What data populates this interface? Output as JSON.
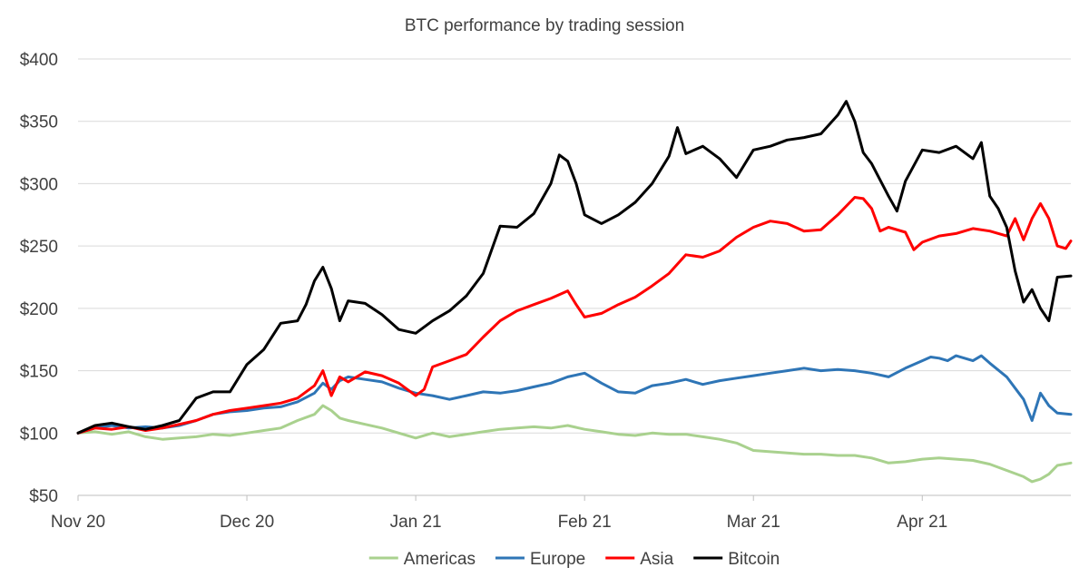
{
  "chart_data": {
    "type": "line",
    "title": "BTC performance by trading session",
    "xlabel": "",
    "ylabel": "",
    "ylim": [
      50,
      400
    ],
    "yticks": [
      50,
      100,
      150,
      200,
      250,
      300,
      350,
      400
    ],
    "ytick_labels": [
      "$50",
      "$100",
      "$150",
      "$200",
      "$250",
      "$300",
      "$350",
      "$400"
    ],
    "xlim": [
      0,
      5.88
    ],
    "xticks": [
      0,
      1,
      2,
      3,
      4,
      5
    ],
    "xtick_labels": [
      "Nov 20",
      "Dec 20",
      "Jan 21",
      "Feb 21",
      "Mar 21",
      "Apr 21"
    ],
    "grid": true,
    "legend_position": "bottom",
    "series": [
      {
        "name": "Americas",
        "color": "#a9d18e",
        "points": [
          [
            0,
            100
          ],
          [
            0.1,
            101
          ],
          [
            0.2,
            99
          ],
          [
            0.3,
            101
          ],
          [
            0.4,
            97
          ],
          [
            0.5,
            95
          ],
          [
            0.6,
            96
          ],
          [
            0.7,
            97
          ],
          [
            0.8,
            99
          ],
          [
            0.9,
            98
          ],
          [
            1.0,
            100
          ],
          [
            1.1,
            102
          ],
          [
            1.2,
            104
          ],
          [
            1.3,
            110
          ],
          [
            1.4,
            115
          ],
          [
            1.45,
            122
          ],
          [
            1.5,
            118
          ],
          [
            1.55,
            112
          ],
          [
            1.6,
            110
          ],
          [
            1.7,
            107
          ],
          [
            1.8,
            104
          ],
          [
            1.9,
            100
          ],
          [
            2.0,
            96
          ],
          [
            2.1,
            100
          ],
          [
            2.2,
            97
          ],
          [
            2.3,
            99
          ],
          [
            2.4,
            101
          ],
          [
            2.5,
            103
          ],
          [
            2.6,
            104
          ],
          [
            2.7,
            105
          ],
          [
            2.8,
            104
          ],
          [
            2.9,
            106
          ],
          [
            3.0,
            103
          ],
          [
            3.1,
            101
          ],
          [
            3.2,
            99
          ],
          [
            3.3,
            98
          ],
          [
            3.4,
            100
          ],
          [
            3.5,
            99
          ],
          [
            3.6,
            99
          ],
          [
            3.7,
            97
          ],
          [
            3.8,
            95
          ],
          [
            3.9,
            92
          ],
          [
            4.0,
            86
          ],
          [
            4.1,
            85
          ],
          [
            4.2,
            84
          ],
          [
            4.3,
            83
          ],
          [
            4.4,
            83
          ],
          [
            4.5,
            82
          ],
          [
            4.6,
            82
          ],
          [
            4.7,
            80
          ],
          [
            4.8,
            76
          ],
          [
            4.9,
            77
          ],
          [
            5.0,
            79
          ],
          [
            5.1,
            80
          ],
          [
            5.2,
            79
          ],
          [
            5.3,
            78
          ],
          [
            5.4,
            75
          ],
          [
            5.5,
            70
          ],
          [
            5.6,
            65
          ],
          [
            5.65,
            61
          ],
          [
            5.7,
            63
          ],
          [
            5.75,
            67
          ],
          [
            5.8,
            74
          ],
          [
            5.88,
            76
          ]
        ]
      },
      {
        "name": "Europe",
        "color": "#2e75b6",
        "points": [
          [
            0,
            100
          ],
          [
            0.1,
            104
          ],
          [
            0.2,
            106
          ],
          [
            0.3,
            104
          ],
          [
            0.4,
            105
          ],
          [
            0.5,
            104
          ],
          [
            0.6,
            106
          ],
          [
            0.7,
            110
          ],
          [
            0.8,
            115
          ],
          [
            0.9,
            117
          ],
          [
            1.0,
            118
          ],
          [
            1.1,
            120
          ],
          [
            1.2,
            121
          ],
          [
            1.3,
            125
          ],
          [
            1.4,
            132
          ],
          [
            1.45,
            140
          ],
          [
            1.5,
            135
          ],
          [
            1.55,
            142
          ],
          [
            1.6,
            145
          ],
          [
            1.7,
            143
          ],
          [
            1.8,
            141
          ],
          [
            1.9,
            136
          ],
          [
            2.0,
            132
          ],
          [
            2.1,
            130
          ],
          [
            2.2,
            127
          ],
          [
            2.3,
            130
          ],
          [
            2.4,
            133
          ],
          [
            2.5,
            132
          ],
          [
            2.6,
            134
          ],
          [
            2.7,
            137
          ],
          [
            2.8,
            140
          ],
          [
            2.9,
            145
          ],
          [
            3.0,
            148
          ],
          [
            3.1,
            140
          ],
          [
            3.2,
            133
          ],
          [
            3.3,
            132
          ],
          [
            3.4,
            138
          ],
          [
            3.5,
            140
          ],
          [
            3.6,
            143
          ],
          [
            3.7,
            139
          ],
          [
            3.8,
            142
          ],
          [
            3.9,
            144
          ],
          [
            4.0,
            146
          ],
          [
            4.1,
            148
          ],
          [
            4.2,
            150
          ],
          [
            4.3,
            152
          ],
          [
            4.4,
            150
          ],
          [
            4.5,
            151
          ],
          [
            4.6,
            150
          ],
          [
            4.7,
            148
          ],
          [
            4.8,
            145
          ],
          [
            4.9,
            152
          ],
          [
            5.0,
            158
          ],
          [
            5.05,
            161
          ],
          [
            5.1,
            160
          ],
          [
            5.15,
            158
          ],
          [
            5.2,
            162
          ],
          [
            5.25,
            160
          ],
          [
            5.3,
            158
          ],
          [
            5.35,
            162
          ],
          [
            5.4,
            156
          ],
          [
            5.5,
            145
          ],
          [
            5.55,
            136
          ],
          [
            5.6,
            127
          ],
          [
            5.65,
            110
          ],
          [
            5.7,
            132
          ],
          [
            5.75,
            122
          ],
          [
            5.8,
            116
          ],
          [
            5.88,
            115
          ]
        ]
      },
      {
        "name": "Asia",
        "color": "#ff0000",
        "points": [
          [
            0,
            100
          ],
          [
            0.1,
            104
          ],
          [
            0.2,
            103
          ],
          [
            0.3,
            105
          ],
          [
            0.4,
            102
          ],
          [
            0.5,
            104
          ],
          [
            0.6,
            107
          ],
          [
            0.7,
            110
          ],
          [
            0.8,
            115
          ],
          [
            0.9,
            118
          ],
          [
            1.0,
            120
          ],
          [
            1.1,
            122
          ],
          [
            1.2,
            124
          ],
          [
            1.3,
            128
          ],
          [
            1.4,
            138
          ],
          [
            1.45,
            150
          ],
          [
            1.5,
            130
          ],
          [
            1.55,
            145
          ],
          [
            1.6,
            141
          ],
          [
            1.7,
            149
          ],
          [
            1.8,
            146
          ],
          [
            1.9,
            140
          ],
          [
            2.0,
            130
          ],
          [
            2.05,
            135
          ],
          [
            2.1,
            153
          ],
          [
            2.2,
            158
          ],
          [
            2.3,
            163
          ],
          [
            2.4,
            177
          ],
          [
            2.5,
            190
          ],
          [
            2.6,
            198
          ],
          [
            2.7,
            203
          ],
          [
            2.8,
            208
          ],
          [
            2.9,
            214
          ],
          [
            2.95,
            203
          ],
          [
            3.0,
            193
          ],
          [
            3.1,
            196
          ],
          [
            3.2,
            203
          ],
          [
            3.3,
            209
          ],
          [
            3.4,
            218
          ],
          [
            3.5,
            228
          ],
          [
            3.6,
            243
          ],
          [
            3.7,
            241
          ],
          [
            3.8,
            246
          ],
          [
            3.9,
            257
          ],
          [
            4.0,
            265
          ],
          [
            4.1,
            270
          ],
          [
            4.2,
            268
          ],
          [
            4.3,
            262
          ],
          [
            4.4,
            263
          ],
          [
            4.5,
            275
          ],
          [
            4.6,
            289
          ],
          [
            4.65,
            288
          ],
          [
            4.7,
            280
          ],
          [
            4.75,
            262
          ],
          [
            4.8,
            265
          ],
          [
            4.9,
            261
          ],
          [
            4.95,
            247
          ],
          [
            5.0,
            253
          ],
          [
            5.1,
            258
          ],
          [
            5.2,
            260
          ],
          [
            5.3,
            264
          ],
          [
            5.4,
            262
          ],
          [
            5.5,
            258
          ],
          [
            5.55,
            272
          ],
          [
            5.6,
            255
          ],
          [
            5.65,
            272
          ],
          [
            5.7,
            284
          ],
          [
            5.75,
            272
          ],
          [
            5.8,
            250
          ],
          [
            5.85,
            248
          ],
          [
            5.88,
            254
          ]
        ]
      },
      {
        "name": "Bitcoin",
        "color": "#000000",
        "points": [
          [
            0,
            100
          ],
          [
            0.1,
            106
          ],
          [
            0.2,
            108
          ],
          [
            0.3,
            105
          ],
          [
            0.4,
            103
          ],
          [
            0.5,
            106
          ],
          [
            0.6,
            110
          ],
          [
            0.7,
            128
          ],
          [
            0.8,
            133
          ],
          [
            0.9,
            133
          ],
          [
            1.0,
            155
          ],
          [
            1.1,
            167
          ],
          [
            1.2,
            188
          ],
          [
            1.3,
            190
          ],
          [
            1.35,
            203
          ],
          [
            1.4,
            222
          ],
          [
            1.45,
            233
          ],
          [
            1.5,
            216
          ],
          [
            1.55,
            190
          ],
          [
            1.6,
            206
          ],
          [
            1.7,
            204
          ],
          [
            1.8,
            195
          ],
          [
            1.9,
            183
          ],
          [
            2.0,
            180
          ],
          [
            2.1,
            190
          ],
          [
            2.2,
            198
          ],
          [
            2.3,
            210
          ],
          [
            2.4,
            228
          ],
          [
            2.5,
            266
          ],
          [
            2.6,
            265
          ],
          [
            2.7,
            276
          ],
          [
            2.8,
            300
          ],
          [
            2.85,
            323
          ],
          [
            2.9,
            318
          ],
          [
            2.95,
            300
          ],
          [
            3.0,
            275
          ],
          [
            3.1,
            268
          ],
          [
            3.2,
            275
          ],
          [
            3.3,
            285
          ],
          [
            3.4,
            300
          ],
          [
            3.5,
            322
          ],
          [
            3.55,
            345
          ],
          [
            3.6,
            324
          ],
          [
            3.7,
            330
          ],
          [
            3.8,
            320
          ],
          [
            3.9,
            305
          ],
          [
            4.0,
            327
          ],
          [
            4.1,
            330
          ],
          [
            4.2,
            335
          ],
          [
            4.3,
            337
          ],
          [
            4.4,
            340
          ],
          [
            4.5,
            355
          ],
          [
            4.55,
            366
          ],
          [
            4.6,
            350
          ],
          [
            4.65,
            325
          ],
          [
            4.7,
            316
          ],
          [
            4.8,
            290
          ],
          [
            4.85,
            278
          ],
          [
            4.9,
            302
          ],
          [
            5.0,
            327
          ],
          [
            5.1,
            325
          ],
          [
            5.2,
            330
          ],
          [
            5.3,
            320
          ],
          [
            5.35,
            333
          ],
          [
            5.4,
            290
          ],
          [
            5.45,
            280
          ],
          [
            5.5,
            265
          ],
          [
            5.55,
            230
          ],
          [
            5.6,
            205
          ],
          [
            5.65,
            215
          ],
          [
            5.7,
            200
          ],
          [
            5.75,
            190
          ],
          [
            5.8,
            225
          ],
          [
            5.88,
            226
          ]
        ]
      }
    ]
  }
}
